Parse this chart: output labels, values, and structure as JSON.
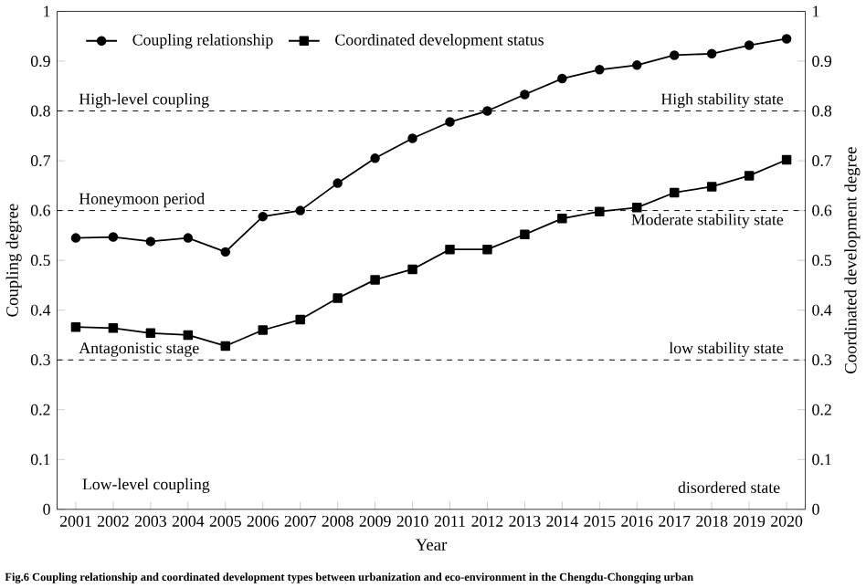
{
  "chart_data": {
    "type": "line",
    "xlabel": "Year",
    "ylabel": "Coupling degree",
    "y2label": "Coordinated development degree",
    "categories": [
      "2001",
      "2002",
      "2003",
      "2004",
      "2005",
      "2006",
      "2007",
      "2008",
      "2009",
      "2010",
      "2011",
      "2012",
      "2013",
      "2014",
      "2015",
      "2016",
      "2017",
      "2018",
      "2019",
      "2020"
    ],
    "series": [
      {
        "name": "Coupling relationship",
        "color": "#000000",
        "marker": "circle",
        "values": [
          0.545,
          0.547,
          0.538,
          0.545,
          0.517,
          0.588,
          0.6,
          0.655,
          0.705,
          0.745,
          0.778,
          0.8,
          0.833,
          0.865,
          0.883,
          0.892,
          0.912,
          0.915,
          0.932,
          0.945
        ]
      },
      {
        "name": "Coordinated development status",
        "color": "#000000",
        "marker": "square",
        "axis": "y2",
        "values": [
          0.366,
          0.364,
          0.354,
          0.35,
          0.328,
          0.36,
          0.381,
          0.424,
          0.461,
          0.482,
          0.522,
          0.522,
          0.552,
          0.584,
          0.598,
          0.606,
          0.636,
          0.648,
          0.67,
          0.702
        ]
      }
    ],
    "ylim": [
      0,
      1
    ],
    "yticks": [
      0,
      0.1,
      0.2,
      0.3,
      0.4,
      0.5,
      0.6,
      0.7,
      0.8,
      0.9,
      1
    ],
    "y2lim": [
      0,
      1
    ],
    "y2ticks": [
      0,
      0.1,
      0.2,
      0.3,
      0.4,
      0.5,
      0.6,
      0.7,
      0.8,
      0.9,
      1
    ],
    "ref_lines": [
      {
        "axis": "y",
        "value": 0.8,
        "label": "High-level coupling",
        "line_style": "dashed"
      },
      {
        "axis": "y",
        "value": 0.6,
        "label": "Honeymoon period",
        "line_style": "dashed"
      },
      {
        "axis": "y",
        "value": 0.3,
        "label": "Antagonistic stage",
        "line_style": "dashed"
      }
    ],
    "annotations": [
      "Low-level coupling",
      "disordered state",
      "Fig.6  Coupling relationship and coordinated development types between urbanization and eco-environment in the Chengdu-Chongqing urban",
      {
        "text": "High stability state",
        "y": 0.8
      },
      {
        "text": "Moderate stability state",
        "y": 0.6
      },
      {
        "text": "low stability state",
        "y": 0.3
      }
    ],
    "legend": "top left",
    "grid": false,
    "line_style": "solid"
  }
}
